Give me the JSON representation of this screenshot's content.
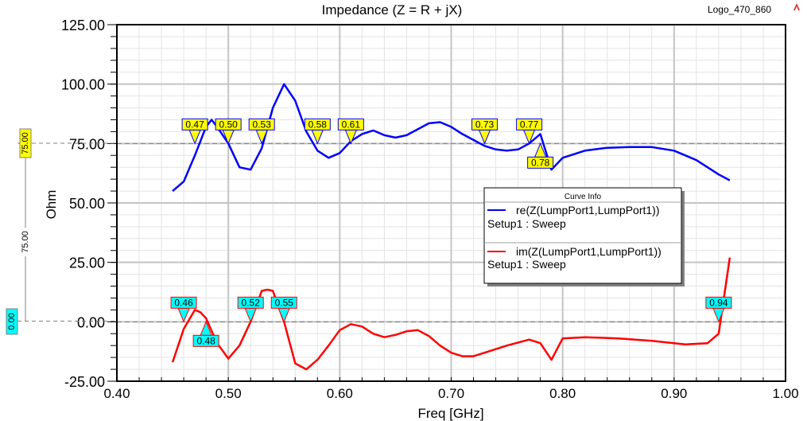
{
  "logo_label": "Logo_470_860",
  "chart_data": {
    "type": "line",
    "title": "Impedance (Z = R + jX)",
    "xlabel": "Freq [GHz]",
    "ylabel": "Ohm",
    "xlim": [
      0.4,
      1.0
    ],
    "ylim": [
      -25,
      125
    ],
    "xticks": [
      "0.40",
      "0.50",
      "0.60",
      "0.70",
      "0.80",
      "0.90",
      "1.00"
    ],
    "yticks": [
      "125.00",
      "100.00",
      "75.00",
      "50.00",
      "25.00",
      "0.00",
      "-25.00"
    ],
    "grid": true,
    "legend": {
      "title": "Curve Info",
      "placement": "center-right",
      "entries": [
        {
          "name": "re(Z(LumpPort1,LumpPort1))",
          "setup": "Setup1 : Sweep"
        },
        {
          "name": "im(Z(LumpPort1,LumpPort1))",
          "setup": "Setup1 : Sweep"
        }
      ]
    },
    "reference_lines": [
      {
        "value": 75,
        "label": "75.00",
        "color": "#ffff00"
      },
      {
        "value": 0,
        "label": "0.00",
        "color": "#00ffff"
      }
    ],
    "delta_label": "75.00",
    "series": [
      {
        "name": "re(Z(LumpPort1,LumpPort1))",
        "color": "#0000ff",
        "x": [
          0.45,
          0.46,
          0.47,
          0.48,
          0.485,
          0.49,
          0.5,
          0.51,
          0.52,
          0.53,
          0.54,
          0.55,
          0.56,
          0.57,
          0.58,
          0.59,
          0.6,
          0.61,
          0.62,
          0.63,
          0.64,
          0.65,
          0.66,
          0.67,
          0.68,
          0.69,
          0.7,
          0.71,
          0.72,
          0.73,
          0.74,
          0.75,
          0.76,
          0.77,
          0.78,
          0.79,
          0.8,
          0.82,
          0.84,
          0.86,
          0.88,
          0.9,
          0.92,
          0.94,
          0.95
        ],
        "y": [
          55,
          59,
          70,
          82,
          85,
          82,
          75,
          65,
          64,
          73,
          90,
          100,
          93,
          80,
          72,
          69,
          71,
          76,
          79,
          80.5,
          78.5,
          77.5,
          78.5,
          81,
          83.5,
          84,
          82,
          79,
          76.5,
          74,
          72.5,
          72,
          72.5,
          75,
          79,
          64,
          69,
          72,
          73.2,
          73.5,
          73.5,
          72,
          68,
          62,
          59.5
        ],
        "markers": [
          {
            "x": 0.47,
            "label": "0.47",
            "side": "above"
          },
          {
            "x": 0.5,
            "label": "0.50",
            "side": "above"
          },
          {
            "x": 0.53,
            "label": "0.53",
            "side": "above"
          },
          {
            "x": 0.58,
            "label": "0.58",
            "side": "above"
          },
          {
            "x": 0.61,
            "label": "0.61",
            "side": "above"
          },
          {
            "x": 0.73,
            "label": "0.73",
            "side": "above"
          },
          {
            "x": 0.77,
            "label": "0.77",
            "side": "above"
          },
          {
            "x": 0.78,
            "label": "0.78",
            "side": "below"
          }
        ],
        "marker_color": "#ffff00"
      },
      {
        "name": "im(Z(LumpPort1,LumpPort1))",
        "color": "#ff0000",
        "x": [
          0.45,
          0.46,
          0.47,
          0.475,
          0.48,
          0.49,
          0.5,
          0.51,
          0.52,
          0.53,
          0.535,
          0.54,
          0.55,
          0.56,
          0.57,
          0.58,
          0.59,
          0.6,
          0.61,
          0.62,
          0.63,
          0.64,
          0.65,
          0.66,
          0.67,
          0.68,
          0.69,
          0.7,
          0.71,
          0.72,
          0.73,
          0.75,
          0.77,
          0.78,
          0.79,
          0.8,
          0.82,
          0.85,
          0.88,
          0.91,
          0.93,
          0.94,
          0.95
        ],
        "y": [
          -17,
          -3,
          5,
          4,
          1.5,
          -9,
          -15.5,
          -10,
          0,
          13,
          13.5,
          13,
          0,
          -17.5,
          -20,
          -16,
          -10,
          -3.5,
          -1,
          -2,
          -5,
          -6.5,
          -5.5,
          -4,
          -3.5,
          -6,
          -10,
          -13,
          -14.5,
          -14.5,
          -13,
          -10,
          -7.5,
          -9,
          -16,
          -7,
          -6.5,
          -7,
          -8,
          -9.5,
          -9,
          -5,
          27
        ],
        "markers": [
          {
            "x": 0.46,
            "label": "0.46",
            "side": "above"
          },
          {
            "x": 0.48,
            "label": "0.48",
            "side": "below"
          },
          {
            "x": 0.52,
            "label": "0.52",
            "side": "above"
          },
          {
            "x": 0.55,
            "label": "0.55",
            "side": "above"
          },
          {
            "x": 0.94,
            "label": "0.94",
            "side": "above"
          }
        ],
        "marker_color": "#00ffff"
      }
    ]
  }
}
